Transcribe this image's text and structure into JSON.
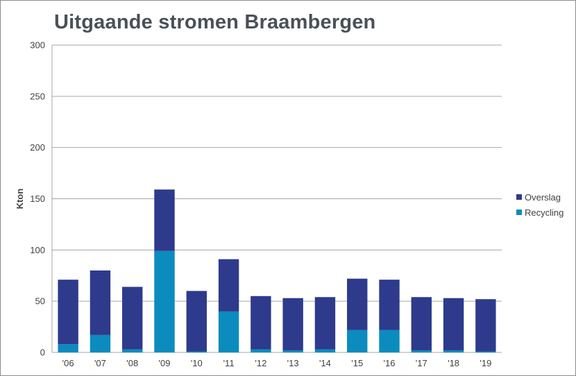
{
  "chart_data": {
    "type": "bar",
    "stacked": true,
    "title": "Uitgaande stromen Braambergen",
    "xlabel": "",
    "ylabel": "Kton",
    "ylim": [
      0,
      300
    ],
    "yticks": [
      0,
      50,
      100,
      150,
      200,
      250,
      300
    ],
    "grid": true,
    "legend_position": "right",
    "categories": [
      "'06",
      "'07",
      "'08",
      "'09",
      "'10",
      "'11",
      "'12",
      "'13",
      "'14",
      "'15",
      "'16",
      "'17",
      "'18",
      "'19"
    ],
    "series": [
      {
        "name": "Recycling",
        "color": "#0B8BBE",
        "values": [
          8,
          17,
          3,
          99,
          1,
          40,
          3,
          2,
          3,
          22,
          22,
          2,
          2,
          1
        ]
      },
      {
        "name": "Overslag",
        "color": "#2E3A8C",
        "values": [
          63,
          63,
          61,
          60,
          59,
          51,
          52,
          51,
          51,
          50,
          49,
          52,
          51,
          51
        ]
      }
    ]
  }
}
